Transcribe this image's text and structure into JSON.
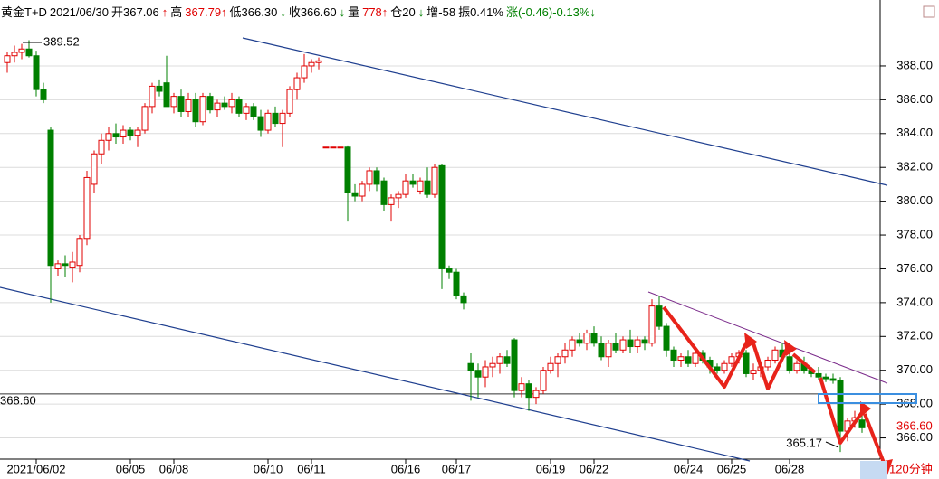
{
  "chart_data": {
    "type": "candlestick",
    "header": [
      {
        "text": "黄金T+D",
        "color": "#000000"
      },
      {
        "text": "2021/06/30",
        "color": "#000000"
      },
      {
        "text": "开367.06",
        "color": "#000000"
      },
      {
        "text": "↑",
        "color": "#e00000"
      },
      {
        "text": "高",
        "color": "#000000"
      },
      {
        "text": "367.79↑",
        "color": "#e00000"
      },
      {
        "text": "低366.30",
        "color": "#000000"
      },
      {
        "text": "↓",
        "color": "#008000"
      },
      {
        "text": "收366.60",
        "color": "#000000"
      },
      {
        "text": "↓",
        "color": "#008000"
      },
      {
        "text": "量",
        "color": "#000000"
      },
      {
        "text": "778↑",
        "color": "#e00000"
      },
      {
        "text": "仓20",
        "color": "#000000"
      },
      {
        "text": "↓",
        "color": "#008000"
      },
      {
        "text": "增-58",
        "color": "#000000"
      },
      {
        "text": "振0.41%",
        "color": "#000000"
      },
      {
        "text": "涨(-0.46)-0.13%↓",
        "color": "#008000"
      }
    ],
    "categories": [
      null,
      null,
      null,
      null,
      "2021/06/02",
      null,
      null,
      null,
      null,
      null,
      null,
      null,
      null,
      null,
      null,
      null,
      null,
      "06/05",
      null,
      null,
      null,
      null,
      null,
      "06/08",
      null,
      null,
      null,
      null,
      null,
      null,
      null,
      null,
      null,
      null,
      null,
      null,
      "06/10",
      null,
      null,
      null,
      null,
      null,
      "06/11",
      null,
      null,
      null,
      null,
      null,
      null,
      null,
      null,
      null,
      null,
      null,
      null,
      "06/16",
      null,
      null,
      null,
      null,
      null,
      null,
      "06/17",
      null,
      null,
      null,
      null,
      null,
      null,
      null,
      null,
      null,
      null,
      null,
      null,
      "06/19",
      null,
      null,
      null,
      null,
      null,
      "06/22",
      null,
      null,
      null,
      null,
      null,
      null,
      null,
      null,
      null,
      null,
      null,
      null,
      "06/24",
      null,
      null,
      null,
      null,
      null,
      "06/25",
      null,
      null,
      null,
      null,
      null,
      null,
      null,
      "06/28",
      null,
      null,
      null,
      null,
      null,
      null,
      null,
      null,
      null,
      null
    ],
    "open": [
      388.2,
      388.6,
      388.8,
      389.0,
      388.6,
      386.6,
      384.2,
      376.0,
      376.3,
      376.1,
      376.2,
      377.8,
      381.0,
      382.8,
      383.6,
      384.0,
      383.8,
      384.2,
      383.9,
      384.2,
      385.6,
      386.8,
      387.0,
      385.6,
      386.2,
      385.3,
      386.0,
      384.7,
      386.2,
      385.4,
      385.8,
      385.6,
      386.0,
      385.2,
      385.6,
      385.0,
      384.2,
      385.2,
      384.6,
      385.2,
      386.6,
      387.3,
      388.0,
      388.2,
      383.2,
      383.2,
      383.2,
      383.2,
      380.5,
      380.3,
      381.0,
      381.8,
      381.2,
      379.8,
      380.2,
      380.4,
      381.2,
      380.6,
      381.2,
      380.4,
      382.1,
      376.0,
      375.8,
      374.4,
      370.4,
      370.0,
      369.6,
      370.2,
      370.4,
      370.8,
      371.8,
      368.8,
      369.2,
      368.4,
      368.8,
      370.0,
      370.4,
      370.8,
      371.2,
      371.8,
      371.6,
      372.2,
      371.6,
      370.8,
      371.6,
      371.2,
      371.8,
      371.4,
      371.8,
      371.6,
      373.8,
      372.6,
      371.2,
      370.6,
      370.8,
      370.4,
      371.0,
      370.6,
      370.2,
      370.0,
      370.4,
      370.8,
      371.0,
      369.8,
      370.0,
      370.2,
      370.6,
      371.2,
      370.8,
      370.0,
      370.4,
      370.0,
      369.8,
      369.6,
      369.5,
      369.4,
      366.4,
      367.0,
      367.06
    ],
    "high": [
      388.8,
      389.2,
      389.3,
      389.52,
      388.9,
      387.0,
      384.4,
      376.5,
      376.8,
      377.0,
      378.0,
      381.8,
      383.0,
      384.0,
      384.4,
      384.6,
      384.5,
      384.4,
      384.4,
      385.8,
      387.0,
      387.2,
      388.6,
      386.4,
      386.6,
      386.4,
      386.4,
      386.4,
      386.4,
      386.0,
      386.2,
      386.4,
      386.2,
      385.8,
      385.8,
      385.4,
      385.4,
      385.6,
      385.4,
      386.8,
      387.6,
      388.7,
      388.4,
      388.5,
      383.2,
      383.2,
      383.2,
      383.3,
      381.0,
      381.2,
      382.0,
      382.0,
      381.4,
      380.4,
      380.6,
      381.6,
      381.6,
      381.4,
      382.0,
      382.2,
      382.2,
      376.2,
      376.0,
      374.6,
      371.0,
      370.4,
      370.6,
      370.8,
      371.0,
      371.2,
      371.9,
      369.6,
      369.4,
      369.0,
      370.2,
      370.8,
      371.0,
      371.6,
      372.0,
      372.2,
      372.4,
      372.6,
      372.0,
      371.8,
      372.2,
      372.0,
      372.4,
      372.0,
      372.0,
      374.2,
      374.4,
      372.8,
      371.4,
      371.0,
      371.2,
      371.4,
      371.2,
      370.8,
      370.4,
      370.6,
      371.0,
      371.2,
      371.2,
      370.4,
      370.4,
      370.8,
      371.4,
      371.6,
      371.0,
      370.6,
      370.8,
      370.2,
      370.2,
      369.8,
      369.8,
      369.6,
      367.2,
      367.6,
      367.79
    ],
    "low": [
      387.6,
      388.2,
      388.4,
      388.5,
      386.2,
      385.8,
      374.0,
      375.6,
      375.5,
      375.2,
      375.8,
      377.4,
      380.5,
      382.2,
      383.0,
      383.4,
      383.4,
      383.6,
      383.2,
      384.0,
      385.2,
      386.2,
      385.6,
      385.2,
      385.0,
      385.0,
      384.4,
      384.5,
      385.2,
      385.0,
      385.4,
      385.2,
      385.0,
      384.8,
      384.8,
      383.8,
      384.0,
      384.4,
      383.2,
      385.0,
      386.0,
      387.0,
      387.6,
      387.8,
      383.2,
      383.2,
      383.2,
      378.8,
      380.0,
      380.0,
      380.6,
      380.6,
      379.4,
      378.8,
      379.6,
      380.2,
      380.8,
      380.4,
      380.2,
      380.2,
      374.8,
      375.4,
      374.2,
      373.6,
      368.2,
      368.4,
      369.0,
      369.6,
      369.8,
      370.2,
      368.4,
      368.4,
      367.6,
      368.0,
      368.6,
      369.8,
      369.6,
      370.4,
      370.8,
      371.4,
      371.2,
      371.4,
      370.6,
      370.2,
      371.0,
      371.0,
      371.0,
      371.0,
      371.2,
      371.4,
      372.4,
      370.8,
      370.2,
      370.2,
      370.2,
      370.2,
      370.4,
      369.8,
      369.8,
      369.8,
      370.2,
      370.4,
      369.6,
      369.4,
      369.6,
      370.0,
      370.4,
      370.6,
      369.8,
      369.8,
      369.8,
      369.6,
      369.4,
      369.3,
      369.2,
      365.17,
      365.8,
      366.6,
      366.3
    ],
    "close": [
      388.6,
      388.8,
      389.0,
      388.6,
      386.6,
      386.0,
      376.2,
      376.3,
      376.2,
      376.4,
      377.8,
      381.4,
      382.8,
      383.6,
      384.0,
      383.8,
      384.2,
      383.9,
      384.2,
      385.6,
      386.8,
      386.5,
      385.6,
      386.2,
      385.3,
      386.0,
      384.7,
      386.2,
      385.4,
      385.8,
      385.6,
      386.0,
      385.2,
      385.6,
      385.0,
      384.2,
      385.2,
      384.6,
      385.2,
      386.6,
      387.3,
      388.0,
      388.2,
      388.3,
      383.2,
      383.2,
      383.2,
      380.5,
      380.3,
      381.0,
      381.8,
      381.0,
      379.8,
      380.2,
      380.4,
      381.2,
      381.0,
      381.2,
      380.4,
      382.0,
      376.0,
      375.8,
      374.4,
      374.0,
      370.0,
      369.6,
      370.2,
      370.4,
      370.8,
      370.4,
      368.8,
      369.2,
      368.4,
      368.8,
      370.0,
      370.4,
      370.8,
      371.2,
      371.8,
      371.6,
      372.2,
      371.6,
      370.8,
      371.6,
      371.2,
      371.8,
      371.4,
      371.8,
      371.6,
      373.8,
      372.6,
      371.2,
      370.6,
      370.8,
      370.4,
      371.0,
      370.6,
      370.2,
      370.0,
      370.4,
      370.8,
      371.0,
      369.8,
      370.0,
      370.2,
      370.6,
      371.2,
      370.8,
      370.0,
      370.4,
      370.0,
      369.8,
      369.6,
      369.5,
      369.4,
      366.4,
      367.0,
      367.2,
      366.6
    ],
    "up_color": "#e00000",
    "down_color": "#008000",
    "ylim": [
      364.8,
      391.9
    ],
    "yticks": [
      {
        "value": 366,
        "label": "366.00"
      },
      {
        "value": 368,
        "label": "368.00"
      },
      {
        "value": 370,
        "label": "370.00"
      },
      {
        "value": 372,
        "label": "372.00"
      },
      {
        "value": 374,
        "label": "374.00"
      },
      {
        "value": 376,
        "label": "376.00"
      },
      {
        "value": 378,
        "label": "378.00"
      },
      {
        "value": 380,
        "label": "380.00"
      },
      {
        "value": 382,
        "label": "382.00"
      },
      {
        "value": 384,
        "label": "384.00"
      },
      {
        "value": 386,
        "label": "386.00"
      },
      {
        "value": 388,
        "label": "388.00"
      }
    ],
    "grid": true,
    "reference_line": {
      "value": 368.6,
      "label": "368.60"
    },
    "annotations": {
      "high": "389.52",
      "low": "365.17",
      "last": "366.60",
      "period": "120分钟"
    }
  }
}
